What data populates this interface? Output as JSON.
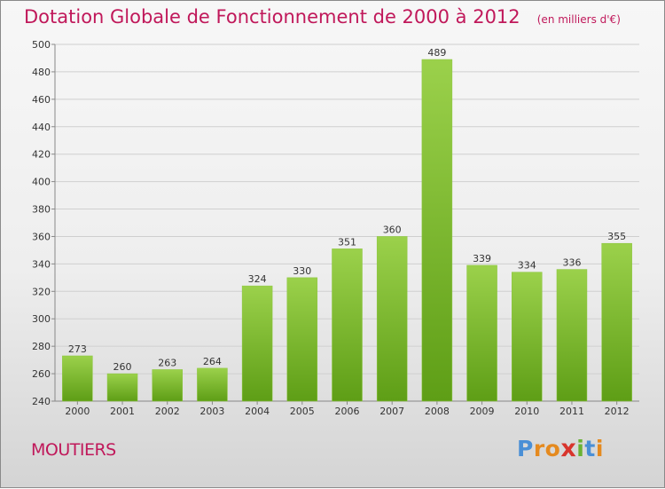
{
  "chart_data": {
    "type": "bar",
    "title": "Dotation Globale de Fonctionnement de 2000 à 2012",
    "unit_note": "(en milliers d'€)",
    "categories": [
      "2000",
      "2001",
      "2002",
      "2003",
      "2004",
      "2005",
      "2006",
      "2007",
      "2008",
      "2009",
      "2010",
      "2011",
      "2012"
    ],
    "values": [
      273,
      260,
      263,
      264,
      324,
      330,
      351,
      360,
      489,
      339,
      334,
      336,
      355
    ],
    "ylim": [
      240,
      500
    ],
    "yticks": [
      240,
      260,
      280,
      300,
      320,
      340,
      360,
      380,
      400,
      420,
      440,
      460,
      480,
      500
    ],
    "grid": true,
    "bar_color_top": "#9bd14b",
    "bar_color_bottom": "#5e9e16"
  },
  "footer": {
    "place": "MOUTIERS",
    "logo_letters": [
      "P",
      "r",
      "o",
      "x",
      "i",
      "t",
      "i"
    ],
    "logo_colors": [
      "#4a8fd6",
      "#e58a1f",
      "#e58a1f",
      "#d8342c",
      "#6ab233",
      "#4a8fd6",
      "#e58a1f"
    ]
  }
}
